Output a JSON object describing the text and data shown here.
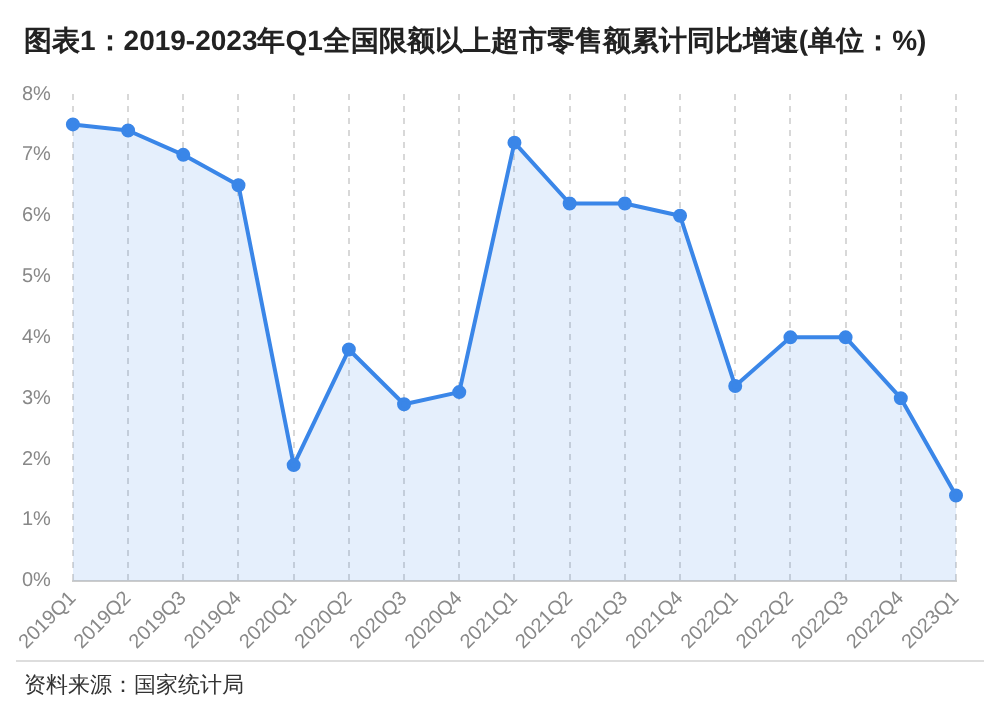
{
  "chart_data": {
    "type": "area",
    "title": "图表1：2019-2023年Q1全国限额以上超市零售额累计同比增速(单位：%)",
    "categories": [
      "2019Q1",
      "2019Q2",
      "2019Q3",
      "2019Q4",
      "2020Q1",
      "2020Q2",
      "2020Q3",
      "2020Q4",
      "2021Q1",
      "2021Q2",
      "2021Q3",
      "2021Q4",
      "2022Q1",
      "2022Q2",
      "2022Q3",
      "2022Q4",
      "2023Q1"
    ],
    "series": [
      {
        "color": "#3a86e8",
        "values": [
          7.5,
          7.4,
          7.0,
          6.5,
          1.9,
          3.8,
          2.9,
          3.1,
          7.2,
          6.2,
          6.2,
          6.0,
          3.2,
          4.0,
          4.0,
          3.0,
          1.4
        ]
      }
    ],
    "ylim": [
      0,
      8
    ],
    "yticks": [
      {
        "value": 0,
        "label": "0%"
      },
      {
        "value": 1,
        "label": "1%"
      },
      {
        "value": 2,
        "label": "2%"
      },
      {
        "value": 3,
        "label": "3%"
      },
      {
        "value": 4,
        "label": "4%"
      },
      {
        "value": 5,
        "label": "5%"
      },
      {
        "value": 6,
        "label": "6%"
      },
      {
        "value": 7,
        "label": "7%"
      },
      {
        "value": 8,
        "label": "8%"
      }
    ],
    "grid": "x",
    "marker": "circle",
    "legend": false,
    "annotations": [
      "资料来源：国家统计局"
    ]
  }
}
